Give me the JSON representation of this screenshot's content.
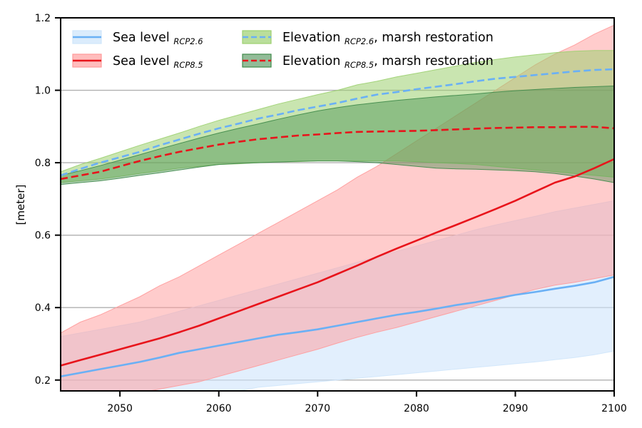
{
  "chart_data": {
    "type": "area",
    "title": "",
    "xlabel": "",
    "ylabel": "[meter]",
    "xlim": [
      2044,
      2100
    ],
    "ylim": [
      0.17,
      1.2
    ],
    "x_ticks": [
      2050,
      2060,
      2070,
      2080,
      2090,
      2100
    ],
    "x_tick_labels": [
      "2050",
      "2060",
      "2070",
      "2080",
      "2090",
      "2100"
    ],
    "y_ticks": [
      0.2,
      0.4,
      0.6,
      0.8,
      1.0,
      1.2
    ],
    "y_tick_labels": [
      "0.2",
      "0.4",
      "0.6",
      "0.8",
      "1.0",
      "1.2"
    ],
    "horizontal_grid": true,
    "vertical_grid": false,
    "legend_placement": "top, two columns",
    "x": [
      2044,
      2046,
      2048,
      2050,
      2052,
      2054,
      2056,
      2058,
      2060,
      2062,
      2064,
      2066,
      2068,
      2070,
      2072,
      2074,
      2076,
      2078,
      2080,
      2082,
      2084,
      2086,
      2088,
      2090,
      2092,
      2094,
      2096,
      2098,
      2100
    ],
    "series": [
      {
        "key": "sea_rcp26",
        "legend_main": "Sea level",
        "legend_sub": "RCP2.6",
        "legend_suffix": "",
        "line_style": "solid",
        "line_color": "#6ab0f5",
        "fill_color": "#cfe5fb",
        "fill_opacity": 0.6,
        "mean": [
          0.21,
          0.22,
          0.23,
          0.24,
          0.25,
          0.262,
          0.275,
          0.285,
          0.295,
          0.305,
          0.315,
          0.325,
          0.332,
          0.34,
          0.35,
          0.36,
          0.37,
          0.38,
          0.388,
          0.397,
          0.407,
          0.415,
          0.425,
          0.435,
          0.443,
          0.452,
          0.46,
          0.47,
          0.485
        ],
        "lower": [
          0.1,
          0.1,
          0.1,
          0.1,
          0.1,
          0.1,
          0.11,
          0.14,
          0.16,
          0.17,
          0.18,
          0.185,
          0.19,
          0.195,
          0.2,
          0.205,
          0.21,
          0.215,
          0.22,
          0.225,
          0.23,
          0.235,
          0.24,
          0.245,
          0.25,
          0.256,
          0.262,
          0.27,
          0.28
        ],
        "upper": [
          0.32,
          0.33,
          0.34,
          0.35,
          0.36,
          0.375,
          0.39,
          0.405,
          0.42,
          0.435,
          0.45,
          0.465,
          0.48,
          0.495,
          0.51,
          0.525,
          0.54,
          0.555,
          0.57,
          0.585,
          0.6,
          0.615,
          0.628,
          0.64,
          0.652,
          0.665,
          0.675,
          0.685,
          0.695
        ]
      },
      {
        "key": "sea_rcp85",
        "legend_main": "Sea level",
        "legend_sub": "RCP8.5",
        "legend_suffix": "",
        "line_style": "solid",
        "line_color": "#e8141b",
        "fill_color": "#ff9a9a",
        "fill_opacity": 0.5,
        "mean": [
          0.24,
          0.255,
          0.27,
          0.285,
          0.3,
          0.315,
          0.332,
          0.35,
          0.37,
          0.39,
          0.41,
          0.43,
          0.45,
          0.47,
          0.493,
          0.516,
          0.54,
          0.563,
          0.585,
          0.607,
          0.628,
          0.65,
          0.672,
          0.695,
          0.72,
          0.745,
          0.762,
          0.785,
          0.81
        ],
        "lower": [
          0.14,
          0.145,
          0.15,
          0.155,
          0.165,
          0.175,
          0.185,
          0.195,
          0.21,
          0.225,
          0.24,
          0.255,
          0.27,
          0.285,
          0.302,
          0.318,
          0.332,
          0.345,
          0.36,
          0.375,
          0.39,
          0.405,
          0.42,
          0.435,
          0.45,
          0.462,
          0.47,
          0.48,
          0.49
        ],
        "upper": [
          0.33,
          0.36,
          0.38,
          0.405,
          0.43,
          0.46,
          0.485,
          0.515,
          0.545,
          0.575,
          0.605,
          0.635,
          0.665,
          0.695,
          0.725,
          0.76,
          0.79,
          0.825,
          0.86,
          0.895,
          0.93,
          0.965,
          1.0,
          1.035,
          1.07,
          1.1,
          1.125,
          1.155,
          1.18
        ]
      },
      {
        "key": "elev_rcp26",
        "legend_main": "Elevation",
        "legend_sub": "RCP2.6",
        "legend_suffix": ", marsh restoration",
        "line_style": "dashed",
        "line_color": "#6ab0f5",
        "fill_color": "#9cd070",
        "fill_opacity": 0.55,
        "mean": [
          0.765,
          0.783,
          0.8,
          0.815,
          0.83,
          0.848,
          0.864,
          0.88,
          0.895,
          0.908,
          0.922,
          0.933,
          0.945,
          0.955,
          0.965,
          0.977,
          0.988,
          0.995,
          1.003,
          1.01,
          1.017,
          1.025,
          1.032,
          1.037,
          1.042,
          1.047,
          1.052,
          1.056,
          1.058
        ],
        "lower": [
          0.745,
          0.75,
          0.755,
          0.762,
          0.77,
          0.777,
          0.785,
          0.79,
          0.795,
          0.797,
          0.8,
          0.802,
          0.803,
          0.805,
          0.805,
          0.805,
          0.805,
          0.805,
          0.803,
          0.8,
          0.798,
          0.795,
          0.79,
          0.785,
          0.78,
          0.775,
          0.77,
          0.765,
          0.76
        ],
        "upper": [
          0.775,
          0.795,
          0.812,
          0.83,
          0.848,
          0.865,
          0.882,
          0.9,
          0.917,
          0.932,
          0.947,
          0.962,
          0.975,
          0.988,
          1.0,
          1.015,
          1.025,
          1.037,
          1.047,
          1.057,
          1.067,
          1.077,
          1.085,
          1.092,
          1.098,
          1.104,
          1.108,
          1.11,
          1.11
        ]
      },
      {
        "key": "elev_rcp85",
        "legend_main": "Elevation",
        "legend_sub": "RCP8.5",
        "legend_suffix": ", marsh restoration",
        "line_style": "dashed",
        "line_color": "#e8141b",
        "fill_color": "#3f8a4a",
        "fill_opacity": 0.42,
        "mean": [
          0.755,
          0.765,
          0.775,
          0.79,
          0.805,
          0.818,
          0.83,
          0.84,
          0.85,
          0.858,
          0.865,
          0.87,
          0.875,
          0.878,
          0.882,
          0.885,
          0.886,
          0.887,
          0.888,
          0.89,
          0.892,
          0.894,
          0.896,
          0.897,
          0.898,
          0.898,
          0.899,
          0.899,
          0.895
        ],
        "lower": [
          0.74,
          0.745,
          0.75,
          0.757,
          0.765,
          0.772,
          0.78,
          0.788,
          0.795,
          0.798,
          0.8,
          0.802,
          0.804,
          0.805,
          0.805,
          0.803,
          0.8,
          0.795,
          0.79,
          0.785,
          0.783,
          0.782,
          0.78,
          0.778,
          0.775,
          0.77,
          0.763,
          0.755,
          0.745
        ],
        "upper": [
          0.765,
          0.778,
          0.792,
          0.807,
          0.822,
          0.838,
          0.853,
          0.868,
          0.882,
          0.895,
          0.907,
          0.92,
          0.932,
          0.943,
          0.952,
          0.96,
          0.966,
          0.972,
          0.977,
          0.982,
          0.986,
          0.99,
          0.995,
          0.999,
          1.002,
          1.005,
          1.008,
          1.01,
          1.012
        ]
      }
    ]
  }
}
